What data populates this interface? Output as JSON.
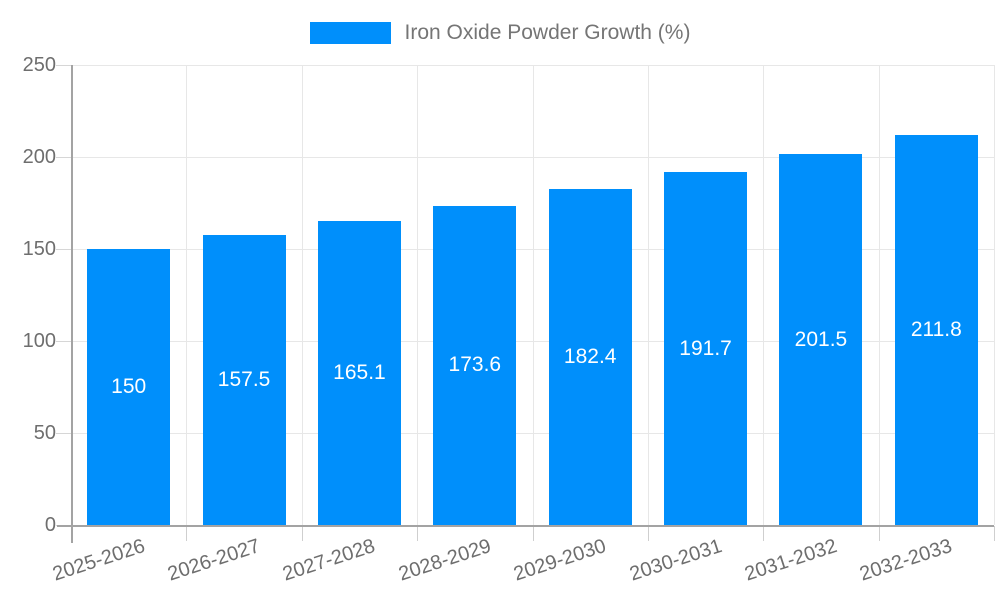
{
  "legend": {
    "label": "Iron Oxide Powder Growth (%)"
  },
  "chart_data": {
    "type": "bar",
    "title": "Iron Oxide Powder Growth (%)",
    "categories": [
      "2025-2026",
      "2026-2027",
      "2027-2028",
      "2028-2029",
      "2029-2030",
      "2030-2031",
      "2031-2032",
      "2032-2033"
    ],
    "values": [
      150,
      157.5,
      165.1,
      173.6,
      182.4,
      191.7,
      201.5,
      211.8
    ],
    "value_labels": [
      "150",
      "157.5",
      "165.1",
      "173.6",
      "182.4",
      "191.7",
      "201.5",
      "211.8"
    ],
    "xlabel": "",
    "ylabel": "",
    "ylim": [
      0,
      250
    ],
    "yticks": [
      "0",
      "50",
      "100",
      "150",
      "200",
      "250"
    ],
    "grid": true,
    "legend_position": "top"
  },
  "colors": {
    "bar": "#008FFB",
    "axis_text": "#6e6e6e",
    "legend_text": "#757575",
    "grid": "#e7e7e7",
    "axis_line": "#a3a3a3",
    "value_label": "#ffffff",
    "background": "#ffffff"
  }
}
